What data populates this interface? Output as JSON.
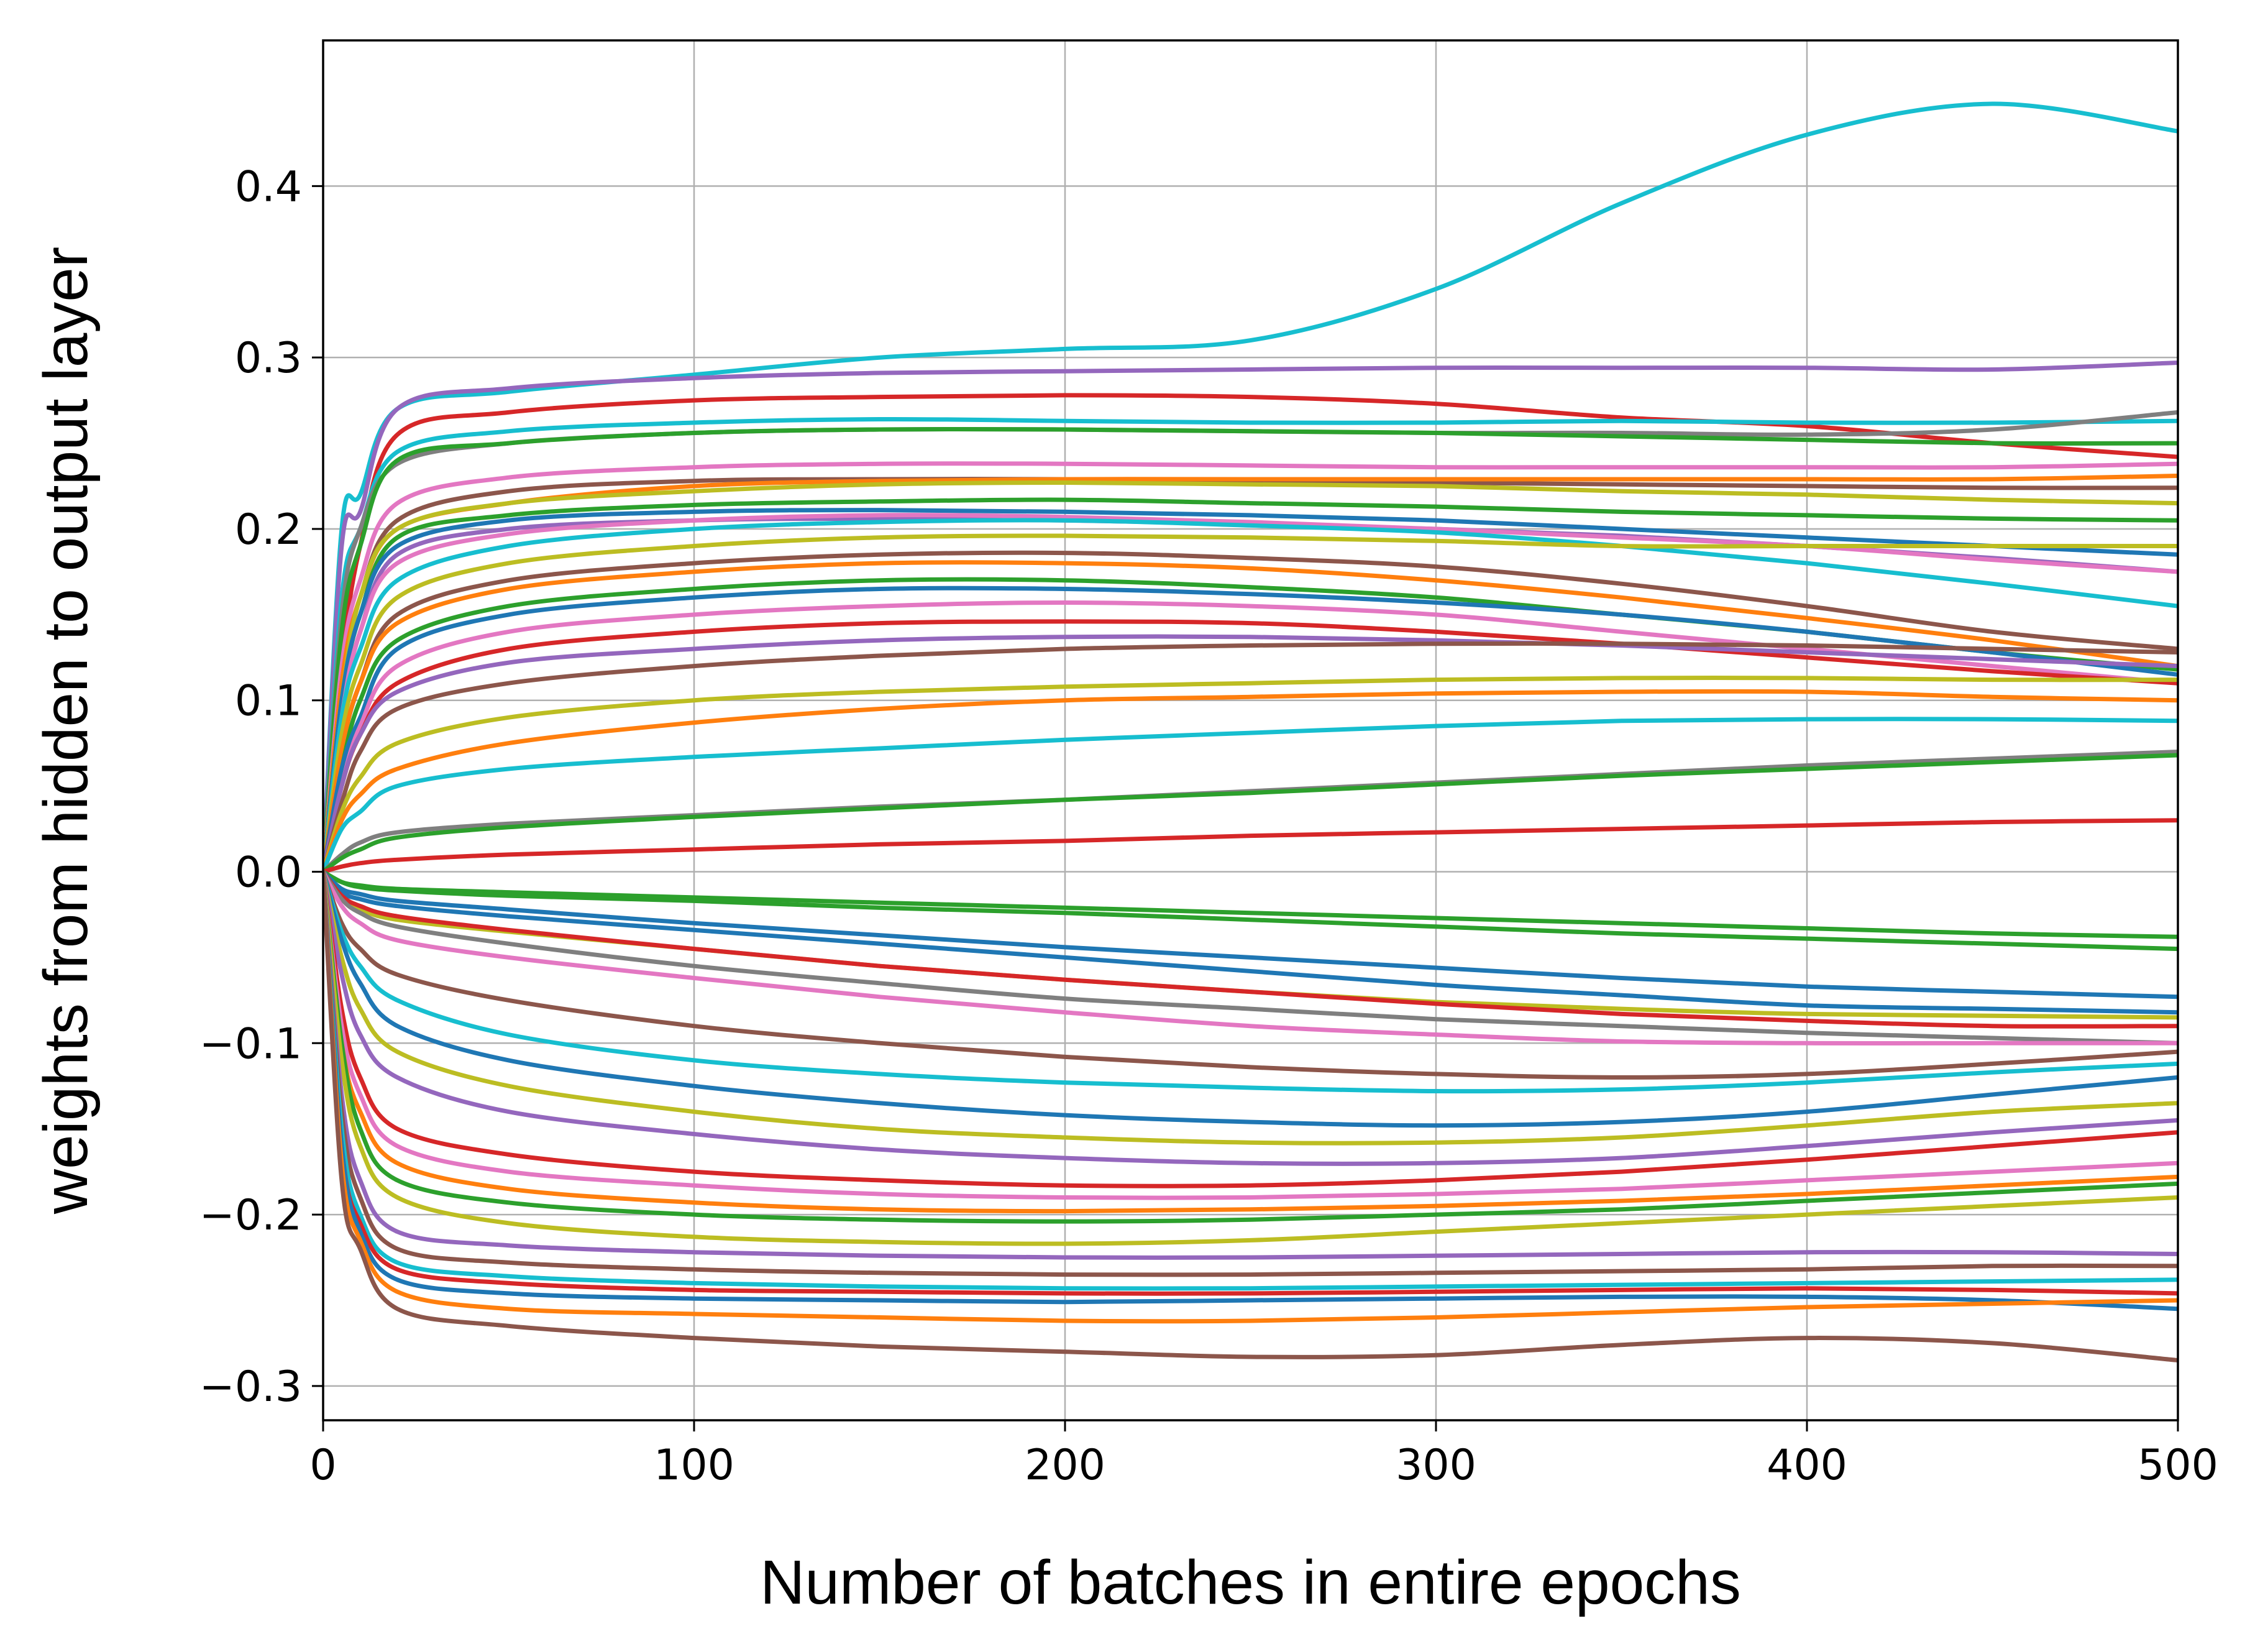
{
  "chart_data": {
    "type": "line",
    "title": "",
    "xlabel": "Number of batches in entire epochs",
    "ylabel": "weights from hidden to output layer",
    "xlim": [
      0,
      500
    ],
    "ylim": [
      -0.32,
      0.485
    ],
    "xticks": [
      0,
      100,
      200,
      300,
      400,
      500
    ],
    "xtick_labels": [
      "0",
      "100",
      "200",
      "300",
      "400",
      "500"
    ],
    "yticks": [
      -0.3,
      -0.2,
      -0.1,
      0.0,
      0.1,
      0.2,
      0.3,
      0.4
    ],
    "ytick_labels": [
      "−0.3",
      "−0.2",
      "−0.1",
      "0.0",
      "0.1",
      "0.2",
      "0.3",
      "0.4"
    ],
    "grid": true,
    "legend": "none",
    "x": [
      0,
      5,
      10,
      20,
      50,
      100,
      150,
      200,
      250,
      300,
      350,
      400,
      450,
      500
    ],
    "series": [
      {
        "color": "#17becf",
        "values": [
          0.0,
          0.2,
          0.22,
          0.27,
          0.28,
          0.29,
          0.3,
          0.305,
          0.31,
          0.34,
          0.39,
          0.43,
          0.448,
          0.432
        ]
      },
      {
        "color": "#9467bd",
        "values": [
          0.0,
          0.19,
          0.21,
          0.27,
          0.282,
          0.288,
          0.291,
          0.292,
          0.293,
          0.294,
          0.294,
          0.294,
          0.293,
          0.297
        ]
      },
      {
        "color": "#d62728",
        "values": [
          0.0,
          0.12,
          0.19,
          0.255,
          0.268,
          0.275,
          0.277,
          0.278,
          0.277,
          0.273,
          0.265,
          0.26,
          0.25,
          0.242
        ]
      },
      {
        "color": "#17becf",
        "values": [
          0.0,
          0.16,
          0.2,
          0.245,
          0.257,
          0.262,
          0.264,
          0.263,
          0.262,
          0.262,
          0.263,
          0.262,
          0.262,
          0.263
        ]
      },
      {
        "color": "#7f7f7f",
        "values": [
          0.0,
          0.15,
          0.2,
          0.238,
          0.25,
          0.256,
          0.258,
          0.258,
          0.257,
          0.256,
          0.256,
          0.255,
          0.258,
          0.268
        ]
      },
      {
        "color": "#2ca02c",
        "values": [
          0.0,
          0.14,
          0.19,
          0.24,
          0.25,
          0.256,
          0.258,
          0.258,
          0.257,
          0.256,
          0.254,
          0.252,
          0.25,
          0.25
        ]
      },
      {
        "color": "#e377c2",
        "values": [
          0.0,
          0.12,
          0.17,
          0.215,
          0.23,
          0.236,
          0.238,
          0.238,
          0.237,
          0.236,
          0.236,
          0.236,
          0.236,
          0.238
        ]
      },
      {
        "color": "#8c564b",
        "values": [
          0.0,
          0.11,
          0.16,
          0.205,
          0.222,
          0.228,
          0.229,
          0.229,
          0.228,
          0.227,
          0.226,
          0.225,
          0.224,
          0.224
        ]
      },
      {
        "color": "#ff7f0e",
        "values": [
          0.0,
          0.11,
          0.16,
          0.2,
          0.215,
          0.225,
          0.228,
          0.229,
          0.229,
          0.229,
          0.229,
          0.229,
          0.229,
          0.231
        ]
      },
      {
        "color": "#bcbd22",
        "values": [
          0.0,
          0.1,
          0.16,
          0.2,
          0.215,
          0.222,
          0.226,
          0.227,
          0.226,
          0.225,
          0.222,
          0.22,
          0.217,
          0.215
        ]
      },
      {
        "color": "#2ca02c",
        "values": [
          0.0,
          0.1,
          0.15,
          0.195,
          0.208,
          0.214,
          0.216,
          0.217,
          0.215,
          0.213,
          0.21,
          0.208,
          0.206,
          0.205
        ]
      },
      {
        "color": "#1f77b4",
        "values": [
          0.0,
          0.1,
          0.15,
          0.19,
          0.205,
          0.21,
          0.211,
          0.21,
          0.208,
          0.205,
          0.2,
          0.195,
          0.19,
          0.185
        ]
      },
      {
        "color": "#9467bd",
        "values": [
          0.0,
          0.09,
          0.14,
          0.185,
          0.2,
          0.205,
          0.206,
          0.205,
          0.203,
          0.2,
          0.196,
          0.19,
          0.183,
          0.175
        ]
      },
      {
        "color": "#e377c2",
        "values": [
          0.0,
          0.09,
          0.14,
          0.18,
          0.197,
          0.205,
          0.208,
          0.207,
          0.204,
          0.2,
          0.195,
          0.19,
          0.182,
          0.175
        ]
      },
      {
        "color": "#17becf",
        "values": [
          0.0,
          0.09,
          0.13,
          0.17,
          0.19,
          0.2,
          0.204,
          0.205,
          0.202,
          0.198,
          0.19,
          0.18,
          0.168,
          0.155
        ]
      },
      {
        "color": "#bcbd22",
        "values": [
          0.0,
          0.08,
          0.12,
          0.16,
          0.18,
          0.19,
          0.195,
          0.196,
          0.195,
          0.193,
          0.19,
          0.19,
          0.19,
          0.19
        ]
      },
      {
        "color": "#8c564b",
        "values": [
          0.0,
          0.07,
          0.11,
          0.15,
          0.17,
          0.18,
          0.185,
          0.186,
          0.183,
          0.178,
          0.168,
          0.155,
          0.14,
          0.13
        ]
      },
      {
        "color": "#ff7f0e",
        "values": [
          0.0,
          0.07,
          0.11,
          0.145,
          0.165,
          0.175,
          0.18,
          0.18,
          0.177,
          0.17,
          0.16,
          0.148,
          0.135,
          0.12
        ]
      },
      {
        "color": "#2ca02c",
        "values": [
          0.0,
          0.06,
          0.1,
          0.135,
          0.155,
          0.165,
          0.17,
          0.17,
          0.166,
          0.16,
          0.15,
          0.14,
          0.128,
          0.118
        ]
      },
      {
        "color": "#1f77b4",
        "values": [
          0.0,
          0.06,
          0.09,
          0.13,
          0.15,
          0.16,
          0.165,
          0.165,
          0.162,
          0.157,
          0.15,
          0.14,
          0.128,
          0.115
        ]
      },
      {
        "color": "#e377c2",
        "values": [
          0.0,
          0.05,
          0.085,
          0.12,
          0.14,
          0.15,
          0.155,
          0.157,
          0.155,
          0.15,
          0.14,
          0.13,
          0.12,
          0.11
        ]
      },
      {
        "color": "#d62728",
        "values": [
          0.0,
          0.05,
          0.08,
          0.11,
          0.13,
          0.14,
          0.145,
          0.146,
          0.145,
          0.14,
          0.133,
          0.125,
          0.117,
          0.11
        ]
      },
      {
        "color": "#9467bd",
        "values": [
          0.0,
          0.05,
          0.08,
          0.105,
          0.122,
          0.13,
          0.135,
          0.137,
          0.137,
          0.135,
          0.132,
          0.128,
          0.124,
          0.12
        ]
      },
      {
        "color": "#8c564b",
        "values": [
          0.0,
          0.04,
          0.07,
          0.095,
          0.11,
          0.12,
          0.126,
          0.13,
          0.132,
          0.133,
          0.133,
          0.132,
          0.13,
          0.128
        ]
      },
      {
        "color": "#bcbd22",
        "values": [
          0.0,
          0.035,
          0.055,
          0.075,
          0.09,
          0.1,
          0.105,
          0.108,
          0.11,
          0.112,
          0.113,
          0.113,
          0.112,
          0.112
        ]
      },
      {
        "color": "#ff7f0e",
        "values": [
          0.0,
          0.03,
          0.045,
          0.06,
          0.075,
          0.087,
          0.095,
          0.1,
          0.102,
          0.104,
          0.105,
          0.105,
          0.102,
          0.1
        ]
      },
      {
        "color": "#17becf",
        "values": [
          0.0,
          0.025,
          0.035,
          0.05,
          0.06,
          0.067,
          0.072,
          0.077,
          0.081,
          0.085,
          0.088,
          0.089,
          0.089,
          0.088
        ]
      },
      {
        "color": "#7f7f7f",
        "values": [
          0.0,
          0.01,
          0.017,
          0.023,
          0.028,
          0.033,
          0.038,
          0.042,
          0.047,
          0.052,
          0.057,
          0.062,
          0.066,
          0.07
        ]
      },
      {
        "color": "#2ca02c",
        "values": [
          0.0,
          0.008,
          0.013,
          0.02,
          0.026,
          0.032,
          0.037,
          0.042,
          0.046,
          0.051,
          0.056,
          0.06,
          0.064,
          0.068
        ]
      },
      {
        "color": "#d62728",
        "values": [
          0.0,
          0.003,
          0.005,
          0.007,
          0.01,
          0.013,
          0.016,
          0.018,
          0.021,
          0.023,
          0.025,
          0.027,
          0.029,
          0.03
        ]
      },
      {
        "color": "#2ca02c",
        "values": [
          0.0,
          -0.006,
          -0.008,
          -0.01,
          -0.012,
          -0.015,
          -0.018,
          -0.021,
          -0.024,
          -0.027,
          -0.03,
          -0.033,
          -0.036,
          -0.038
        ]
      },
      {
        "color": "#2ca02c",
        "values": [
          0.0,
          -0.006,
          -0.009,
          -0.011,
          -0.014,
          -0.017,
          -0.021,
          -0.024,
          -0.028,
          -0.032,
          -0.036,
          -0.039,
          -0.042,
          -0.045
        ]
      },
      {
        "color": "#1f77b4",
        "values": [
          0.0,
          -0.01,
          -0.013,
          -0.017,
          -0.022,
          -0.03,
          -0.037,
          -0.044,
          -0.05,
          -0.056,
          -0.062,
          -0.067,
          -0.07,
          -0.073
        ]
      },
      {
        "color": "#1f77b4",
        "values": [
          0.0,
          -0.012,
          -0.016,
          -0.02,
          -0.026,
          -0.034,
          -0.042,
          -0.05,
          -0.058,
          -0.066,
          -0.072,
          -0.078,
          -0.08,
          -0.082
        ]
      },
      {
        "color": "#bcbd22",
        "values": [
          0.0,
          -0.016,
          -0.022,
          -0.028,
          -0.035,
          -0.045,
          -0.055,
          -0.063,
          -0.07,
          -0.076,
          -0.08,
          -0.083,
          -0.084,
          -0.085
        ]
      },
      {
        "color": "#d62728",
        "values": [
          0.0,
          -0.014,
          -0.02,
          -0.026,
          -0.034,
          -0.045,
          -0.055,
          -0.063,
          -0.07,
          -0.077,
          -0.083,
          -0.087,
          -0.09,
          -0.09
        ]
      },
      {
        "color": "#7f7f7f",
        "values": [
          0.0,
          -0.016,
          -0.024,
          -0.032,
          -0.042,
          -0.055,
          -0.065,
          -0.074,
          -0.08,
          -0.086,
          -0.09,
          -0.094,
          -0.097,
          -0.1
        ]
      },
      {
        "color": "#e377c2",
        "values": [
          0.0,
          -0.02,
          -0.03,
          -0.04,
          -0.05,
          -0.062,
          -0.073,
          -0.082,
          -0.09,
          -0.095,
          -0.099,
          -0.1,
          -0.1,
          -0.1
        ]
      },
      {
        "color": "#8c564b",
        "values": [
          0.0,
          -0.03,
          -0.045,
          -0.06,
          -0.075,
          -0.09,
          -0.1,
          -0.108,
          -0.114,
          -0.118,
          -0.12,
          -0.118,
          -0.112,
          -0.105
        ]
      },
      {
        "color": "#17becf",
        "values": [
          0.0,
          -0.035,
          -0.055,
          -0.075,
          -0.095,
          -0.11,
          -0.118,
          -0.123,
          -0.126,
          -0.128,
          -0.127,
          -0.123,
          -0.117,
          -0.112
        ]
      },
      {
        "color": "#1f77b4",
        "values": [
          0.0,
          -0.04,
          -0.065,
          -0.09,
          -0.11,
          -0.125,
          -0.135,
          -0.142,
          -0.146,
          -0.148,
          -0.146,
          -0.14,
          -0.13,
          -0.12
        ]
      },
      {
        "color": "#bcbd22",
        "values": [
          0.0,
          -0.05,
          -0.08,
          -0.105,
          -0.125,
          -0.14,
          -0.15,
          -0.155,
          -0.158,
          -0.158,
          -0.155,
          -0.148,
          -0.14,
          -0.135
        ]
      },
      {
        "color": "#9467bd",
        "values": [
          0.0,
          -0.06,
          -0.095,
          -0.12,
          -0.14,
          -0.153,
          -0.162,
          -0.167,
          -0.17,
          -0.17,
          -0.167,
          -0.16,
          -0.152,
          -0.145
        ]
      },
      {
        "color": "#d62728",
        "values": [
          0.0,
          -0.08,
          -0.12,
          -0.15,
          -0.165,
          -0.175,
          -0.18,
          -0.183,
          -0.183,
          -0.18,
          -0.175,
          -0.168,
          -0.16,
          -0.152
        ]
      },
      {
        "color": "#e377c2",
        "values": [
          0.0,
          -0.09,
          -0.13,
          -0.16,
          -0.175,
          -0.183,
          -0.188,
          -0.19,
          -0.19,
          -0.188,
          -0.185,
          -0.18,
          -0.175,
          -0.17
        ]
      },
      {
        "color": "#ff7f0e",
        "values": [
          0.0,
          -0.1,
          -0.14,
          -0.17,
          -0.185,
          -0.193,
          -0.197,
          -0.198,
          -0.197,
          -0.195,
          -0.192,
          -0.188,
          -0.183,
          -0.178
        ]
      },
      {
        "color": "#2ca02c",
        "values": [
          0.0,
          -0.1,
          -0.15,
          -0.18,
          -0.193,
          -0.2,
          -0.203,
          -0.204,
          -0.203,
          -0.2,
          -0.197,
          -0.192,
          -0.187,
          -0.182
        ]
      },
      {
        "color": "#bcbd22",
        "values": [
          0.0,
          -0.11,
          -0.16,
          -0.19,
          -0.205,
          -0.213,
          -0.216,
          -0.217,
          -0.215,
          -0.21,
          -0.205,
          -0.2,
          -0.195,
          -0.19
        ]
      },
      {
        "color": "#9467bd",
        "values": [
          0.0,
          -0.13,
          -0.18,
          -0.21,
          -0.218,
          -0.222,
          -0.224,
          -0.225,
          -0.225,
          -0.224,
          -0.223,
          -0.222,
          -0.222,
          -0.223
        ]
      },
      {
        "color": "#8c564b",
        "values": [
          0.0,
          -0.14,
          -0.19,
          -0.22,
          -0.228,
          -0.232,
          -0.234,
          -0.235,
          -0.235,
          -0.234,
          -0.233,
          -0.232,
          -0.23,
          -0.23
        ]
      },
      {
        "color": "#17becf",
        "values": [
          0.0,
          -0.15,
          -0.2,
          -0.228,
          -0.236,
          -0.24,
          -0.242,
          -0.243,
          -0.243,
          -0.242,
          -0.241,
          -0.24,
          -0.239,
          -0.238
        ]
      },
      {
        "color": "#d62728",
        "values": [
          0.0,
          -0.16,
          -0.205,
          -0.232,
          -0.24,
          -0.244,
          -0.245,
          -0.246,
          -0.246,
          -0.245,
          -0.244,
          -0.243,
          -0.244,
          -0.246
        ]
      },
      {
        "color": "#1f77b4",
        "values": [
          0.0,
          -0.16,
          -0.21,
          -0.238,
          -0.246,
          -0.249,
          -0.25,
          -0.251,
          -0.25,
          -0.249,
          -0.248,
          -0.248,
          -0.25,
          -0.255
        ]
      },
      {
        "color": "#ff7f0e",
        "values": [
          0.0,
          -0.17,
          -0.215,
          -0.245,
          -0.255,
          -0.258,
          -0.26,
          -0.262,
          -0.262,
          -0.26,
          -0.257,
          -0.254,
          -0.252,
          -0.25
        ]
      },
      {
        "color": "#8c564b",
        "values": [
          0.0,
          -0.18,
          -0.22,
          -0.255,
          -0.265,
          -0.272,
          -0.277,
          -0.28,
          -0.283,
          -0.282,
          -0.276,
          -0.272,
          -0.275,
          -0.285
        ]
      }
    ]
  }
}
